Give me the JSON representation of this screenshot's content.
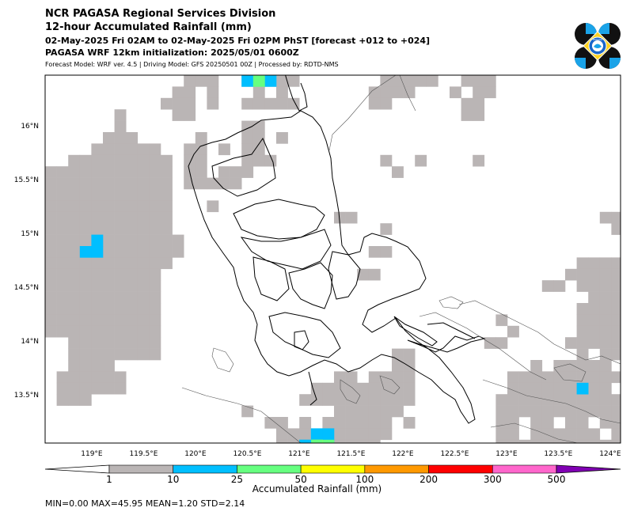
{
  "header": {
    "line1": "NCR PAGASA Regional Services Division",
    "line2": "12-hour Accumulated Rainfall (mm)",
    "line3": "02-May-2025 Fri 02AM to 02-May-2025 Fri 02PM PhST [forecast +012 to +024]",
    "line4": "PAGASA WRF 12km initialization: 2025/05/01 0600Z",
    "line5": "Forecast Model: WRF ver. 4.5 | Driving Model: GFS 20250501 00Z | Processed by: RDTD-NMS"
  },
  "logo": {
    "icon": "pagasa-logo-icon",
    "text": "PAGASA"
  },
  "map": {
    "lon_range": [
      118.55,
      124.1
    ],
    "lat_range": [
      13.05,
      16.47
    ],
    "lon_ticks": [
      "119°E",
      "119.5°E",
      "120°E",
      "120.5°E",
      "121°E",
      "121.5°E",
      "122°E",
      "122.5°E",
      "123°E",
      "123.5°E",
      "124°E"
    ],
    "lat_ticks": [
      "16°N",
      "15.5°N",
      "15°N",
      "14.5°N",
      "14°N",
      "13.5°N"
    ]
  },
  "colorbar": {
    "ticks": [
      "1",
      "10",
      "25",
      "50",
      "100",
      "200",
      "300",
      "500"
    ],
    "colors": [
      "#bab5b5",
      "#00bfff",
      "#66ff80",
      "#ffff00",
      "#ff9900",
      "#ff0000",
      "#ff66cc",
      "#8000b3"
    ],
    "label": "Accumulated Rainfall (mm)"
  },
  "stats": {
    "text": "MIN=0.00   MAX=45.95   MEAN=1.20   STD=2.14"
  }
}
